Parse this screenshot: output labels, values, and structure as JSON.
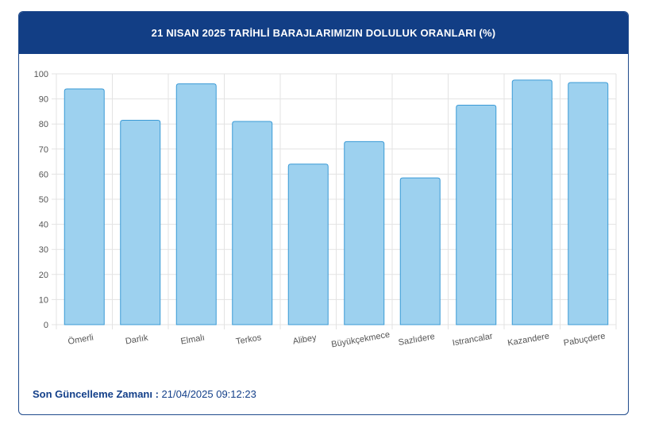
{
  "header": {
    "title": "21 NISAN 2025 TARİHLİ BARAJLARIMIZIN DOLULUK ORANLARI (%)"
  },
  "footer": {
    "update_label": "Son Güncelleme Zamanı :",
    "update_value": " 21/04/2025 09:12:23"
  },
  "colors": {
    "header_bg": "#123e85",
    "bar_fill": "#9dd1ef",
    "bar_stroke": "#3a9ad6",
    "footer_text": "#14408a"
  },
  "chart_data": {
    "type": "bar",
    "categories": [
      "Ömerli",
      "Darlık",
      "Elmalı",
      "Terkos",
      "Alibey",
      "Büyükçekmece",
      "Sazlıdere",
      "Istrancalar",
      "Kazandere",
      "Pabuçdere"
    ],
    "values": [
      94,
      81.5,
      96,
      81,
      64,
      73,
      58.5,
      87.5,
      97.5,
      96.5
    ],
    "yticks": [
      0,
      10,
      20,
      30,
      40,
      50,
      60,
      70,
      80,
      90,
      100
    ],
    "ylim": [
      0,
      100
    ],
    "grid": true,
    "legend": "none"
  }
}
